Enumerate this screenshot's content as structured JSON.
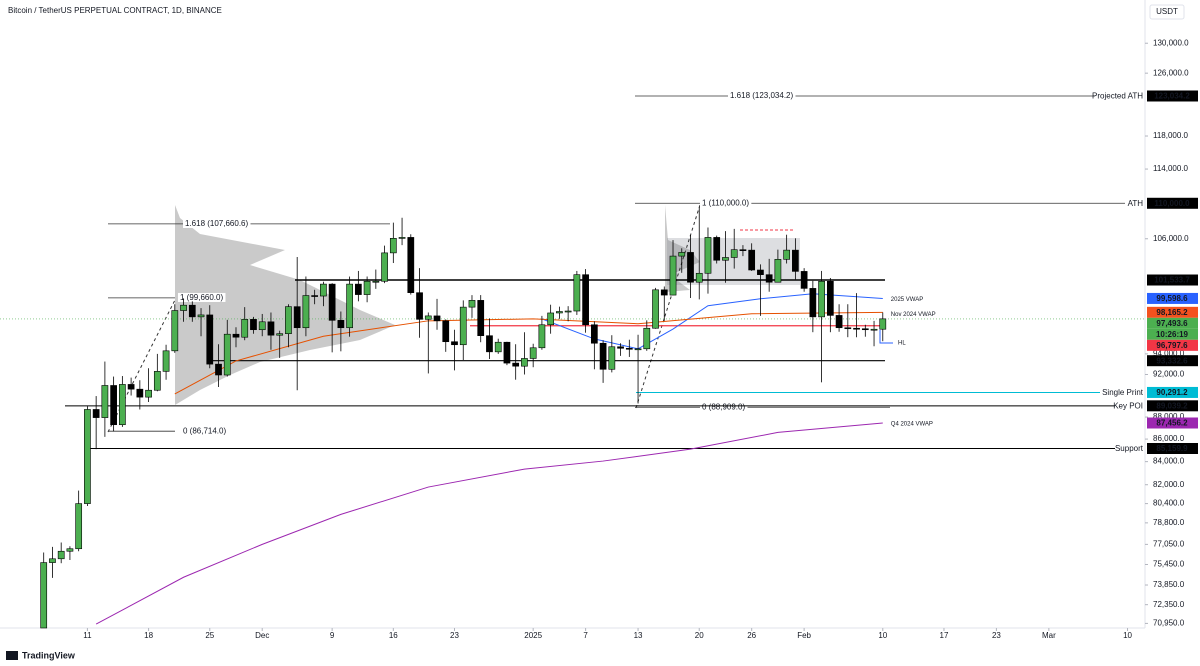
{
  "header": {
    "title": "Bitcoin / TetherUS PERPETUAL CONTRACT, 1D, BINANCE",
    "currency": "USDT"
  },
  "footer": {
    "brand": "TradingView"
  },
  "chart_data": {
    "type": "candlestick",
    "log_scale": true,
    "grid": false,
    "x": [
      "2024-11-06",
      "2024-11-07",
      "2024-11-08",
      "2024-11-09",
      "2024-11-10",
      "2024-11-11",
      "2024-11-12",
      "2024-11-13",
      "2024-11-14",
      "2024-11-15",
      "2024-11-16",
      "2024-11-17",
      "2024-11-18",
      "2024-11-19",
      "2024-11-20",
      "2024-11-21",
      "2024-11-22",
      "2024-11-23",
      "2024-11-24",
      "2024-11-25",
      "2024-11-26",
      "2024-11-27",
      "2024-11-28",
      "2024-11-29",
      "2024-11-30",
      "2024-12-01",
      "2024-12-02",
      "2024-12-03",
      "2024-12-04",
      "2024-12-05",
      "2024-12-06",
      "2024-12-07",
      "2024-12-08",
      "2024-12-09",
      "2024-12-10",
      "2024-12-11",
      "2024-12-12",
      "2024-12-13",
      "2024-12-14",
      "2024-12-15",
      "2024-12-16",
      "2024-12-17",
      "2024-12-18",
      "2024-12-19",
      "2024-12-20",
      "2024-12-21",
      "2024-12-22",
      "2024-12-23",
      "2024-12-24",
      "2024-12-25",
      "2024-12-26",
      "2024-12-27",
      "2024-12-28",
      "2024-12-29",
      "2024-12-30",
      "2024-12-31",
      "2025-01-01",
      "2025-01-02",
      "2025-01-03",
      "2025-01-04",
      "2025-01-05",
      "2025-01-06",
      "2025-01-07",
      "2025-01-08",
      "2025-01-09",
      "2025-01-10",
      "2025-01-11",
      "2025-01-12",
      "2025-01-13",
      "2025-01-14",
      "2025-01-15",
      "2025-01-16",
      "2025-01-17",
      "2025-01-18",
      "2025-01-19",
      "2025-01-20",
      "2025-01-21",
      "2025-01-22",
      "2025-01-23",
      "2025-01-24",
      "2025-01-25",
      "2025-01-26",
      "2025-01-27",
      "2025-01-28",
      "2025-01-29",
      "2025-01-30",
      "2025-01-31",
      "2025-02-01",
      "2025-02-02",
      "2025-02-03",
      "2025-02-04",
      "2025-02-05",
      "2025-02-06",
      "2025-02-07",
      "2025-02-08",
      "2025-02-09",
      "2025-02-10"
    ],
    "open": [
      69350,
      75600,
      75900,
      76500,
      76700,
      80400,
      88700,
      87950,
      90950,
      87300,
      91050,
      90600,
      89850,
      90500,
      92300,
      94300,
      98350,
      98900,
      97700,
      97900,
      93000,
      91950,
      95950,
      95650,
      97450,
      96400,
      97200,
      95850,
      96000,
      98750,
      96600,
      99900,
      99850,
      101100,
      97350,
      96600,
      101100,
      100000,
      101400,
      101400,
      104450,
      106050,
      106150,
      100200,
      97450,
      97800,
      97300,
      95200,
      94900,
      98700,
      99400,
      95800,
      94200,
      95150,
      93100,
      92800,
      93550,
      94600,
      96900,
      98100,
      98250,
      98300,
      102100,
      96900,
      95050,
      92500,
      94700,
      94550,
      94500,
      94500,
      96550,
      100500,
      99950,
      104100,
      104500,
      101300,
      102250,
      106150,
      103650,
      103950,
      104800,
      104750,
      102600,
      102100,
      101300,
      103750,
      104750,
      102450,
      100650,
      97700,
      101400,
      97850,
      96600,
      96550,
      96500,
      96450,
      96450
    ],
    "high": [
      76400,
      76850,
      77200,
      76900,
      81500,
      89000,
      89950,
      93250,
      91800,
      91850,
      91700,
      91450,
      92600,
      94000,
      94900,
      99000,
      99600,
      99300,
      98600,
      98900,
      94950,
      97400,
      96650,
      98700,
      97700,
      98000,
      98150,
      96300,
      99000,
      104000,
      101900,
      100500,
      101350,
      101200,
      98250,
      101900,
      102500,
      101900,
      102650,
      105250,
      107800,
      108350,
      106500,
      102800,
      98150,
      99550,
      97450,
      96400,
      99400,
      99950,
      99950,
      97550,
      95500,
      95200,
      94950,
      96150,
      95000,
      97800,
      98950,
      98750,
      98800,
      102500,
      102700,
      97250,
      95350,
      95850,
      95050,
      95400,
      95900,
      97350,
      100700,
      100850,
      105850,
      104950,
      106400,
      109600,
      107250,
      106350,
      106850,
      107100,
      105300,
      105500,
      103200,
      103800,
      104800,
      106450,
      106050,
      102800,
      101450,
      102500,
      101750,
      99000,
      99000,
      100150,
      96900,
      97300,
      98150
    ],
    "low": [
      69000,
      74400,
      75550,
      75800,
      76500,
      80200,
      85100,
      86200,
      86700,
      87100,
      90000,
      88700,
      89400,
      90400,
      91500,
      94100,
      97200,
      97200,
      95750,
      92600,
      90800,
      91800,
      94650,
      95350,
      96000,
      95750,
      94400,
      93600,
      94650,
      90500,
      95750,
      99000,
      98800,
      94150,
      94250,
      95700,
      99300,
      99200,
      100600,
      101200,
      103350,
      105300,
      100000,
      95600,
      92100,
      96400,
      94200,
      92400,
      93400,
      97600,
      95150,
      93500,
      94000,
      92900,
      91500,
      92000,
      92700,
      94400,
      96000,
      97500,
      97250,
      97900,
      96100,
      92500,
      91200,
      92200,
      93800,
      93700,
      89250,
      94300,
      96500,
      97300,
      99950,
      102300,
      99650,
      99500,
      100100,
      103300,
      101250,
      102750,
      104100,
      102500,
      97800,
      100300,
      101300,
      103300,
      101600,
      100300,
      96150,
      91250,
      96150,
      96200,
      95650,
      95650,
      95700,
      94750,
      95250
    ],
    "close": [
      75600,
      75900,
      76500,
      76700,
      80400,
      88700,
      87950,
      90950,
      87300,
      91050,
      90600,
      89850,
      90500,
      92300,
      94300,
      98350,
      98900,
      97700,
      97900,
      93000,
      91950,
      95950,
      95650,
      97450,
      96400,
      97200,
      95850,
      96000,
      98750,
      96600,
      99900,
      99850,
      101100,
      97350,
      96600,
      101100,
      100000,
      101400,
      101400,
      104450,
      106050,
      106150,
      100200,
      97450,
      97800,
      97300,
      95200,
      94900,
      98700,
      99400,
      95800,
      94200,
      95150,
      93100,
      92800,
      93550,
      94600,
      96900,
      98100,
      98250,
      98300,
      102100,
      96900,
      95050,
      92500,
      94700,
      94550,
      94500,
      94500,
      96550,
      100500,
      99950,
      104100,
      104500,
      101300,
      102250,
      106150,
      103650,
      103950,
      104800,
      104750,
      102600,
      102100,
      101300,
      103750,
      104750,
      102450,
      100650,
      97700,
      101400,
      97850,
      96600,
      96550,
      96500,
      96450,
      96450,
      97500
    ],
    "colors": {
      "up": "#4caf50",
      "down": "#000000"
    },
    "xlim": [
      "2024-11-01",
      "2025-03-12"
    ],
    "xticks": [
      {
        "value": "2024-11-11",
        "label": "11"
      },
      {
        "value": "2024-11-18",
        "label": "18"
      },
      {
        "value": "2024-11-25",
        "label": "25"
      },
      {
        "value": "2024-12-01",
        "label": "Dec"
      },
      {
        "value": "2024-12-09",
        "label": "9"
      },
      {
        "value": "2024-12-16",
        "label": "16"
      },
      {
        "value": "2024-12-23",
        "label": "23"
      },
      {
        "value": "2025-01-01",
        "label": "2025"
      },
      {
        "value": "2025-01-07",
        "label": "7"
      },
      {
        "value": "2025-01-13",
        "label": "13"
      },
      {
        "value": "2025-01-20",
        "label": "20"
      },
      {
        "value": "2025-01-26",
        "label": "26"
      },
      {
        "value": "2025-02-01",
        "label": "Feb"
      },
      {
        "value": "2025-02-10",
        "label": "10"
      },
      {
        "value": "2025-02-17",
        "label": "17"
      },
      {
        "value": "2025-02-23",
        "label": "23"
      },
      {
        "value": "2025-03-01",
        "label": "Mar"
      },
      {
        "value": "2025-03-10",
        "label": "10"
      }
    ],
    "ylim": [
      70610,
      136000
    ],
    "yticks": [
      {
        "value": 130000,
        "label": "130,000.0"
      },
      {
        "value": 126000,
        "label": "126,000.0"
      },
      {
        "value": 118000,
        "label": "118,000.0"
      },
      {
        "value": 114000,
        "label": "114,000.0"
      },
      {
        "value": 106000,
        "label": "106,000.0"
      },
      {
        "value": 94000,
        "label": "94,000.0"
      },
      {
        "value": 92000,
        "label": "92,000.0"
      },
      {
        "value": 88000,
        "label": "88,000.0"
      },
      {
        "value": 86000,
        "label": "86,000.0"
      },
      {
        "value": 84000,
        "label": "84,000.0"
      },
      {
        "value": 82000,
        "label": "82,000.0"
      },
      {
        "value": 80400,
        "label": "80,400.0"
      },
      {
        "value": 78800,
        "label": "78,800.0"
      },
      {
        "value": 77050,
        "label": "77,050.0"
      },
      {
        "value": 75450,
        "label": "75,450.0"
      },
      {
        "value": 73850,
        "label": "73,850.0"
      },
      {
        "value": 72350,
        "label": "72,350.0"
      },
      {
        "value": 70950,
        "label": "70,950.0"
      }
    ],
    "overlays": [
      {
        "name": "Q4 2024 VWAP",
        "color": "#9c27b0",
        "x": [
          "2024-11-12",
          "2024-11-22",
          "2024-12-01",
          "2024-12-10",
          "2024-12-20",
          "2024-12-31",
          "2025-01-09",
          "2025-01-19",
          "2025-01-29",
          "2025-02-10"
        ],
        "values": [
          70900,
          74450,
          77050,
          79500,
          81800,
          83350,
          84050,
          85100,
          86600,
          87456.2
        ]
      },
      {
        "name": "2025 VWAP",
        "color": "#2962ff",
        "x": [
          "2025-01-02",
          "2025-01-08",
          "2025-01-13",
          "2025-01-17",
          "2025-01-21",
          "2025-01-27",
          "2025-02-02",
          "2025-02-10"
        ],
        "values": [
          97500,
          95480,
          94500,
          96470,
          98840,
          99570,
          100090,
          99598.6
        ]
      },
      {
        "name": "Nov 2024 VWAP",
        "color": "#e65100",
        "x": [
          "2024-11-21",
          "2024-11-28",
          "2024-12-08",
          "2024-12-20",
          "2025-01-01",
          "2025-01-13",
          "2025-01-26",
          "2025-02-10"
        ],
        "values": [
          90150,
          93310,
          95740,
          97300,
          97500,
          97000,
          98020,
          98165.2
        ]
      }
    ],
    "levels": [
      {
        "value": 123034.2,
        "label": "123,034.2",
        "name": "Projected ATH",
        "color": "#000000",
        "name_color": "#2962ff"
      },
      {
        "value": 110000,
        "label": "110,000.0",
        "name": "ATH",
        "color": "#000000",
        "name_color": "#2962ff"
      },
      {
        "value": 101533.7,
        "label": "101,533.7",
        "color": "#000000"
      },
      {
        "value": 99598.6,
        "label": "99,598.6",
        "color": "#2962ff"
      },
      {
        "value": 98165.2,
        "label": "98,165.2",
        "color": "#f4511e"
      },
      {
        "value": 97493.6,
        "label": "97,493.6",
        "color": "#4caf50"
      },
      {
        "value": 96797.6,
        "label": "96,797.6",
        "color": "#f23645"
      },
      {
        "value": 93332.6,
        "label": "93,332.6",
        "color": "#000000"
      },
      {
        "value": 90291.2,
        "label": "90,291.2",
        "name": "Single Print",
        "color": "#00bcd4",
        "name_color": "#1565c0"
      },
      {
        "value": 89039.2,
        "label": "89,039.2",
        "name": "Key POI",
        "color": "#000000",
        "name_color": "#000000"
      },
      {
        "value": 87456.2,
        "label": "87,456.2",
        "color": "#9c27b0"
      },
      {
        "value": 85159.9,
        "label": "85,159.9",
        "name": "Support",
        "color": "#000000",
        "name_color": "#000000"
      }
    ],
    "countdown": "10:26:19",
    "fibs": [
      {
        "value": 123034.2,
        "label": "1.618 (123,034.2)"
      },
      {
        "value": 110000,
        "label": "1 (110,000.0)"
      },
      {
        "value": 88909,
        "label": "0 (88,909.0)"
      },
      {
        "value": 107660.6,
        "label": "1.618 (107,660.6)"
      },
      {
        "value": 99660,
        "label": "1 (99,660.0)"
      },
      {
        "value": 86714,
        "label": "0 (86,714.0)"
      }
    ],
    "annotations": [
      "HL"
    ]
  }
}
